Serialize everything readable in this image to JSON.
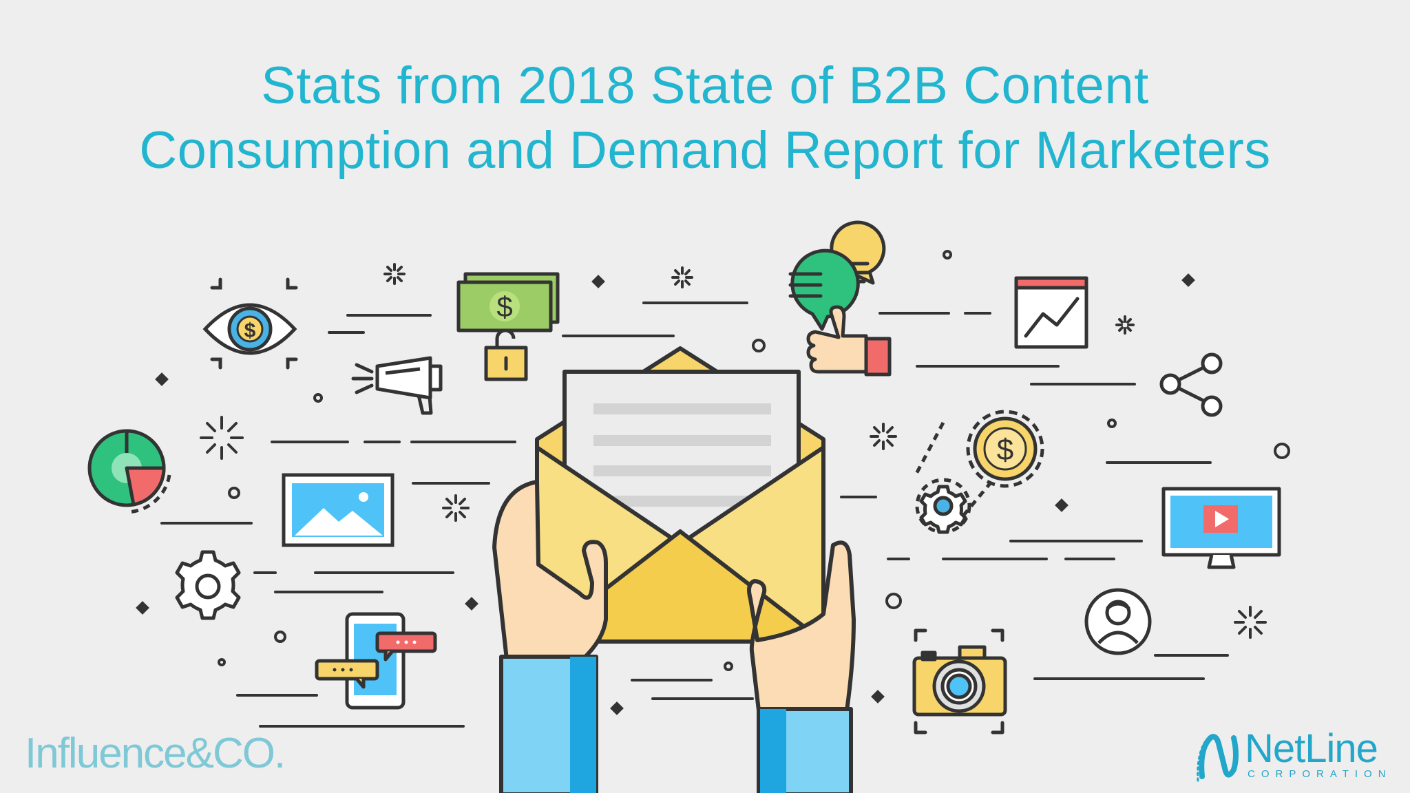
{
  "title": {
    "line1": "Stats from 2018 State of B2B Content",
    "line2": "Consumption and Demand Report for Marketers"
  },
  "logos": {
    "left": "Influence&CO.",
    "right_name": "NetLine",
    "right_sub": "CORPORATION"
  },
  "colors": {
    "title": "#22b5cf",
    "envelope": "#f7d56b",
    "sleeve": "#7fd3f5",
    "skin": "#fbdcb4",
    "outline": "#333333"
  },
  "icons": [
    "eye-dollar-icon",
    "megaphone-icon",
    "cash-lock-icon",
    "chat-thumbs-up-icon",
    "line-chart-icon",
    "share-icon",
    "pie-chart-icon",
    "image-icon",
    "gear-icon",
    "phone-chat-icon",
    "coin-gear-icon",
    "video-monitor-icon",
    "user-avatar-icon",
    "camera-icon",
    "envelope-letter-icon",
    "hands-icon"
  ]
}
